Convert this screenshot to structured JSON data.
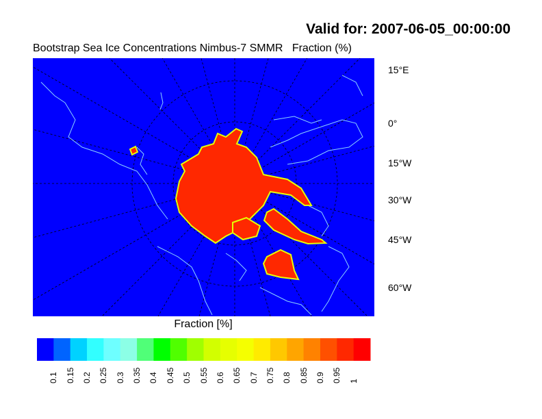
{
  "header": {
    "title": "Valid for: 2007-06-05_00:00:00",
    "subtitle": "Bootstrap Sea Ice Concentrations Nimbus-7 SMMR   Fraction (%)"
  },
  "map": {
    "projection": "polar stereographic (north)",
    "ocean_color": "#0000ff",
    "ice_color": "#ff2800",
    "coastline_color": "#8cd2ff",
    "longitude_labels": [
      "15°E",
      "0°",
      "15°W",
      "30°W",
      "45°W",
      "60°W"
    ]
  },
  "colorbar": {
    "title": "Fraction [%]",
    "labels": [
      "0.1",
      "0.15",
      "0.2",
      "0.25",
      "0.3",
      "0.35",
      "0.4",
      "0.45",
      "0.5",
      "0.55",
      "0.6",
      "0.65",
      "0.7",
      "0.75",
      "0.8",
      "0.85",
      "0.9",
      "0.95",
      "1"
    ],
    "colors": [
      "#0000ff",
      "#0064ff",
      "#00d2ff",
      "#32ffff",
      "#6effff",
      "#8cffe6",
      "#50ff78",
      "#00ff00",
      "#50ff00",
      "#a0ff00",
      "#d2ff00",
      "#e6ff00",
      "#f5ff00",
      "#ffeb00",
      "#ffc800",
      "#ffa500",
      "#ff8200",
      "#ff5000",
      "#ff2800",
      "#ff0000"
    ]
  }
}
